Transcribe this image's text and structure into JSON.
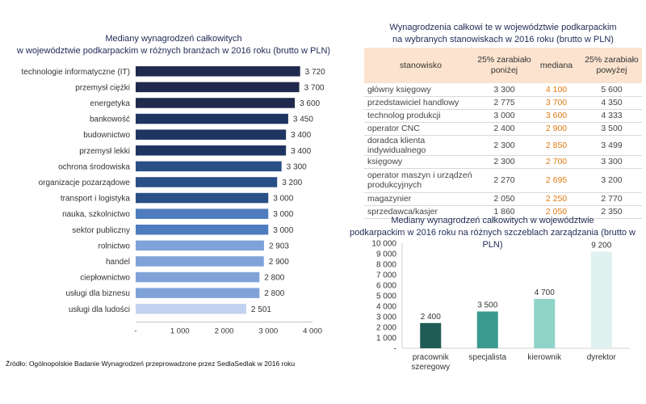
{
  "left_chart": {
    "title_line1": "Mediany wynagrodzeń całkowitych",
    "title_line2": "w województwie podkarpackim w różnych branżach w 2016 roku (brutto w PLN)"
  },
  "table": {
    "title_line1": "Wynagrodzenia całkowi te w województwie podkarpackim",
    "title_line2": "na wybranych stanowiskach w 2016 roku (brutto w PLN)",
    "headers": [
      "stanowisko",
      "25% zarabiało poniżej",
      "mediana",
      "25% zarabiało powyżej"
    ],
    "rows": [
      {
        "position": "główny księgowy",
        "low": "3 300",
        "median": "4 100",
        "high": "5 600"
      },
      {
        "position": "przedstawiciel handlowy",
        "low": "2 775",
        "median": "3 700",
        "high": "4 350"
      },
      {
        "position": "technolog produkcji",
        "low": "3 000",
        "median": "3 600",
        "high": "4 333"
      },
      {
        "position": "operator CNC",
        "low": "2 400",
        "median": "2 900",
        "high": "3 500"
      },
      {
        "position": "doradca klienta indywidualnego",
        "low": "2 300",
        "median": "2 850",
        "high": "3 499"
      },
      {
        "position": "księgowy",
        "low": "2 300",
        "median": "2 700",
        "high": "3 300"
      },
      {
        "position": "operator maszyn i urządzeń produkcyjnych",
        "low": "2 270",
        "median": "2 695",
        "high": "3 200"
      },
      {
        "position": "magazynier",
        "low": "2 050",
        "median": "2 250",
        "high": "2 770"
      },
      {
        "position": "sprzedawca/kasjer",
        "low": "1 860",
        "median": "2 050",
        "high": "2 350"
      }
    ]
  },
  "right_chart": {
    "title_line1": "Mediany wynagrodzeń całkowitych w województwie",
    "title_line2": "podkarpackim w 2016 roku na różnych szczeblach zarządzania (brutto w PLN)"
  },
  "source": "Źródło: Ogólnopolskie Badanie Wynagrodzeń przeprowadzone przez SedlaSedlak w 2016 roku",
  "chart_data": [
    {
      "type": "bar",
      "orientation": "horizontal",
      "title": "Mediany wynagrodzeń całkowitych w województwie podkarpackim w różnych branżach w 2016 roku (brutto w PLN)",
      "categories": [
        "technologie informatyczne (IT)",
        "przemysł ciężki",
        "energetyka",
        "bankowość",
        "budownictwo",
        "przemysł lekki",
        "ochrona środowiska",
        "organizacje pozarządowe",
        "transport i logistyka",
        "nauka, szkolnictwo",
        "sektor publiczny",
        "rolnictwo",
        "handel",
        "ciepłownictwo",
        "usługi dla biznesu",
        "usługi dla ludości"
      ],
      "values": [
        3720,
        3700,
        3600,
        3450,
        3400,
        3400,
        3300,
        3200,
        3000,
        3000,
        3000,
        2903,
        2900,
        2800,
        2800,
        2501
      ],
      "value_labels": [
        "3 720",
        "3 700",
        "3 600",
        "3 450",
        "3 400",
        "3 400",
        "3 300",
        "3 200",
        "3 000",
        "3 000",
        "3 000",
        "2 903",
        "2 900",
        "2 800",
        "2 800",
        "2 501"
      ],
      "colors": [
        "#1f2a4d",
        "#1f2a4d",
        "#1f2a4d",
        "#1f3561",
        "#1f3561",
        "#1f3561",
        "#2a4f87",
        "#2a4f87",
        "#2a4f87",
        "#4f7cbf",
        "#4f7cbf",
        "#7fa3d9",
        "#7fa3d9",
        "#7fa3d9",
        "#7fa3d9",
        "#c3d3ef"
      ],
      "xlim": [
        0,
        4000
      ],
      "xticks": [
        0,
        1000,
        2000,
        3000,
        4000
      ],
      "xtick_labels": [
        "-",
        "1 000",
        "2 000",
        "3 000",
        "4 000"
      ]
    },
    {
      "type": "bar",
      "orientation": "vertical",
      "title": "Mediany wynagrodzeń całkowitych w województwie podkarpackim w 2016 roku na różnych szczeblach zarządzania (brutto w PLN)",
      "categories": [
        "pracownik szeregowy",
        "specjalista",
        "kierownik",
        "dyrektor"
      ],
      "values": [
        2400,
        3500,
        4700,
        9200
      ],
      "value_labels": [
        "2 400",
        "3 500",
        "4 700",
        "9 200"
      ],
      "colors": [
        "#1f5c55",
        "#3a9a8f",
        "#8fd4c8",
        "#dff2ef"
      ],
      "ylim": [
        0,
        10000
      ],
      "yticks": [
        0,
        1000,
        2000,
        3000,
        4000,
        5000,
        6000,
        7000,
        8000,
        9000,
        10000
      ],
      "ytick_labels": [
        "-",
        "1 000",
        "2 000",
        "3 000",
        "4 000",
        "5 000",
        "6 000",
        "7 000",
        "8 000",
        "9 000",
        "10 000"
      ]
    }
  ]
}
